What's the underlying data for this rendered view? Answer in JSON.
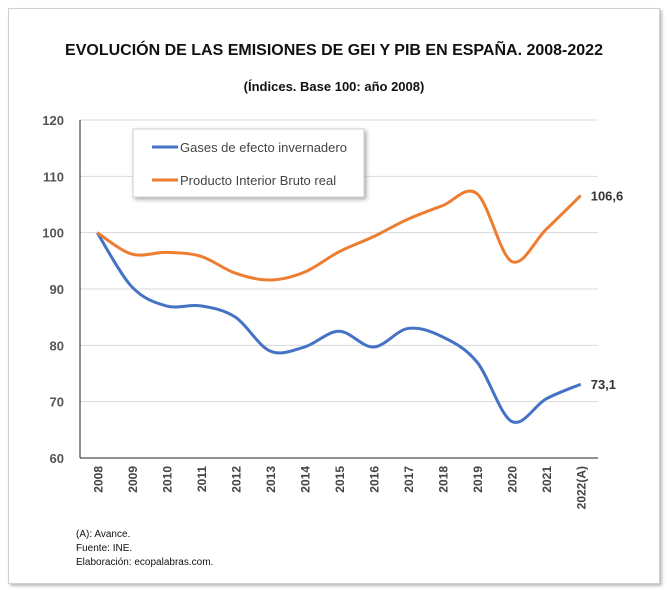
{
  "chart_data": {
    "type": "line",
    "title": "EVOLUCIÓN DE LAS EMISIONES DE GEI Y PIB EN ESPAÑA. 2008-2022",
    "subtitle": "(Índices. Base 100: año 2008)",
    "categories": [
      "2008",
      "2009",
      "2010",
      "2011",
      "2012",
      "2013",
      "2014",
      "2015",
      "2016",
      "2017",
      "2018",
      "2019",
      "2020",
      "2021",
      "2022(A)"
    ],
    "yticks": [
      60,
      70,
      80,
      90,
      100,
      110,
      120
    ],
    "ylim": [
      60,
      120
    ],
    "grid": true,
    "legend_placement": "top-left",
    "series": [
      {
        "name": "Gases de efecto invernadero",
        "color": "#4472c4",
        "values": [
          100,
          90.4,
          87,
          87,
          85,
          79,
          79.7,
          82.5,
          79.7,
          83,
          81.5,
          77,
          66.5,
          70.5,
          73.1
        ],
        "end_label": "73,1"
      },
      {
        "name": "Producto Interior Bruto real",
        "color": "#ed7d31",
        "values": [
          100,
          96.2,
          96.5,
          95.8,
          92.8,
          91.6,
          93,
          96.6,
          99.3,
          102.4,
          104.8,
          106.9,
          94.9,
          100.6,
          106.6
        ],
        "end_label": "106,6"
      }
    ]
  },
  "notes": [
    "(A): Avance.",
    "Fuente: INE.",
    "Elaboración: ecopalabras.com."
  ]
}
